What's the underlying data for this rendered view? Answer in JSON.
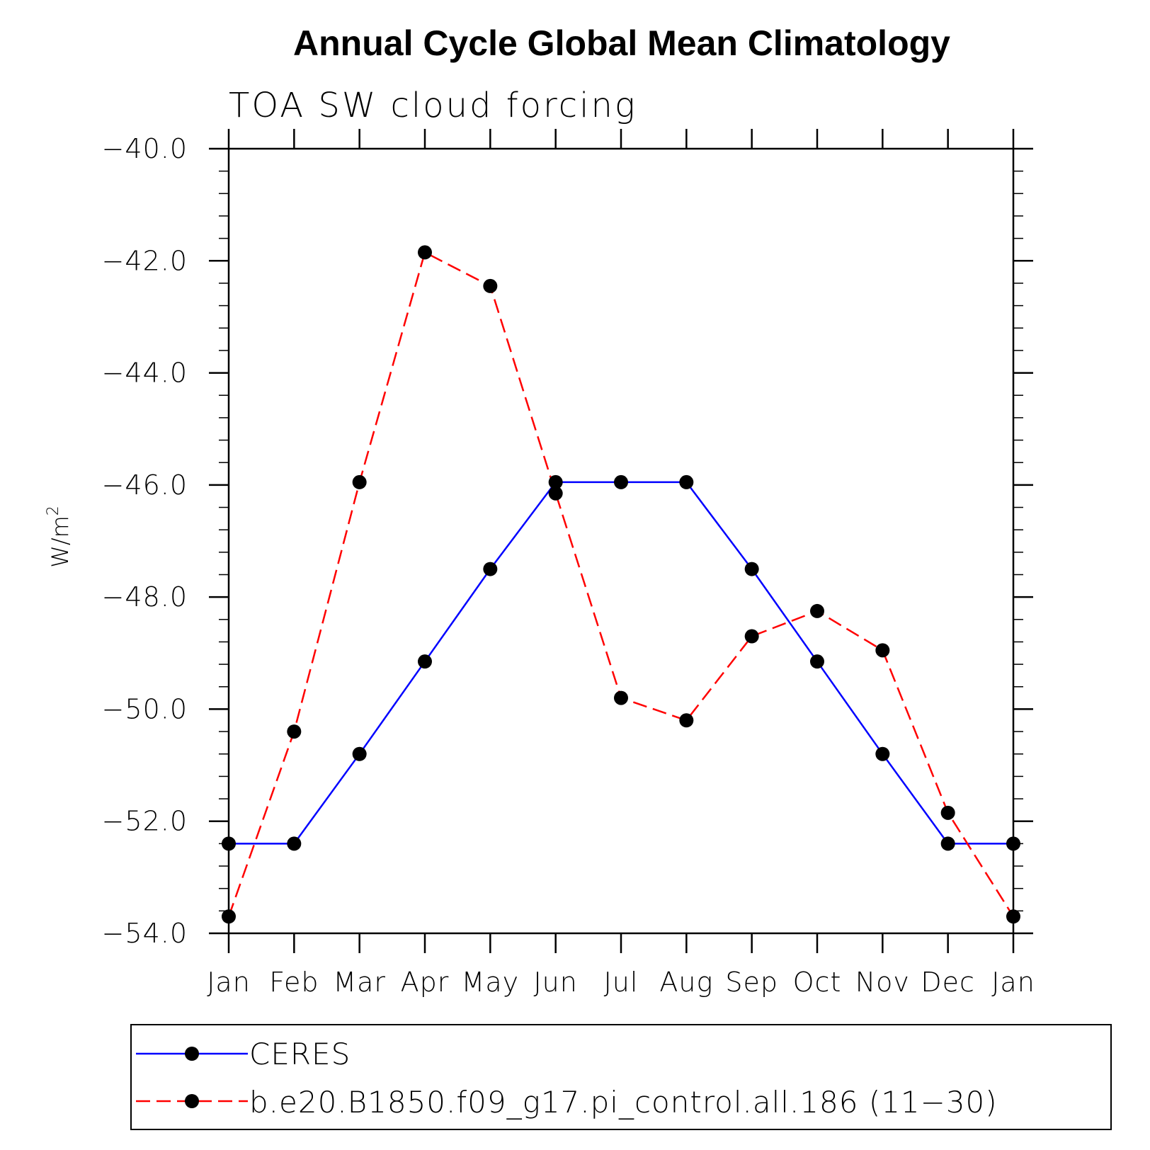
{
  "chart_data": {
    "type": "line",
    "title": "Annual Cycle Global Mean Climatology",
    "subtitle": "TOA SW cloud forcing",
    "ylabel": "W/m",
    "ylabel_superscript": "2",
    "xlabel": "",
    "categories": [
      "Jan",
      "Feb",
      "Mar",
      "Apr",
      "May",
      "Jun",
      "Jul",
      "Aug",
      "Sep",
      "Oct",
      "Nov",
      "Dec",
      "Jan"
    ],
    "ylim": [
      -54.0,
      -40.0
    ],
    "yticks": [
      -54.0,
      -52.0,
      -50.0,
      -48.0,
      -46.0,
      -44.0,
      -42.0,
      -40.0
    ],
    "ytick_labels": [
      "−54.0",
      "−52.0",
      "−50.0",
      "−48.0",
      "−46.0",
      "−44.0",
      "−42.0",
      "−40.0"
    ],
    "series": [
      {
        "name": "CERES",
        "color": "#0000ff",
        "dash": "solid",
        "marker": "circle",
        "values": [
          -52.4,
          -52.4,
          -50.8,
          -49.15,
          -47.5,
          -45.95,
          -45.95,
          -45.95,
          -47.5,
          -49.15,
          -50.8,
          -52.4,
          -52.4
        ]
      },
      {
        "name": "b.e20.B1850.f09_g17.pi_control.all.186 (11−30)",
        "color": "#ff0000",
        "dash": "dashed",
        "marker": "circle",
        "values": [
          -53.7,
          -50.4,
          -45.95,
          -41.85,
          -42.45,
          -46.15,
          -49.8,
          -50.2,
          -48.7,
          -48.25,
          -48.95,
          -51.85,
          -53.7
        ]
      }
    ],
    "legend_position": "bottom"
  }
}
